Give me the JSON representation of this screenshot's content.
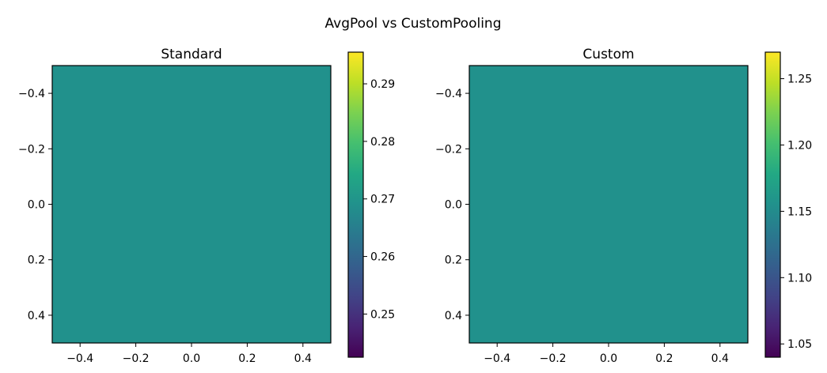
{
  "figure": {
    "title": "AvgPool vs CustomPooling"
  },
  "chart_data": [
    {
      "type": "heatmap",
      "title": "Standard",
      "xlabel": "",
      "ylabel": "",
      "x_ticks": [
        -0.4,
        -0.2,
        0.0,
        0.2,
        0.4
      ],
      "x_tick_labels": [
        "−0.4",
        "−0.2",
        "0.0",
        "0.2",
        "0.4"
      ],
      "y_ticks": [
        -0.4,
        -0.2,
        0.0,
        0.2,
        0.4
      ],
      "y_tick_labels": [
        "−0.4",
        "−0.2",
        "0.0",
        "0.2",
        "0.4"
      ],
      "xlim": [
        -0.5,
        0.5
      ],
      "ylim": [
        0.5,
        -0.5
      ],
      "y_inverted": true,
      "grid": false,
      "values": [
        [
          0.27
        ]
      ],
      "cell_color": "#21918c",
      "colormap": "viridis",
      "colorbar": {
        "range": [
          0.2425,
          0.2955
        ],
        "ticks": [
          0.25,
          0.26,
          0.27,
          0.28,
          0.29
        ],
        "tick_labels": [
          "0.25",
          "0.26",
          "0.27",
          "0.28",
          "0.29"
        ]
      }
    },
    {
      "type": "heatmap",
      "title": "Custom",
      "xlabel": "",
      "ylabel": "",
      "x_ticks": [
        -0.4,
        -0.2,
        0.0,
        0.2,
        0.4
      ],
      "x_tick_labels": [
        "−0.4",
        "−0.2",
        "0.0",
        "0.2",
        "0.4"
      ],
      "y_ticks": [
        -0.4,
        -0.2,
        0.0,
        0.2,
        0.4
      ],
      "y_tick_labels": [
        "−0.4",
        "−0.2",
        "0.0",
        "0.2",
        "0.4"
      ],
      "xlim": [
        -0.5,
        0.5
      ],
      "ylim": [
        0.5,
        -0.5
      ],
      "y_inverted": true,
      "grid": false,
      "values": [
        [
          1.155
        ]
      ],
      "cell_color": "#21918c",
      "colormap": "viridis",
      "colorbar": {
        "range": [
          1.04,
          1.27
        ],
        "ticks": [
          1.05,
          1.1,
          1.15,
          1.2,
          1.25
        ],
        "tick_labels": [
          "1.05",
          "1.10",
          "1.15",
          "1.20",
          "1.25"
        ]
      }
    }
  ]
}
